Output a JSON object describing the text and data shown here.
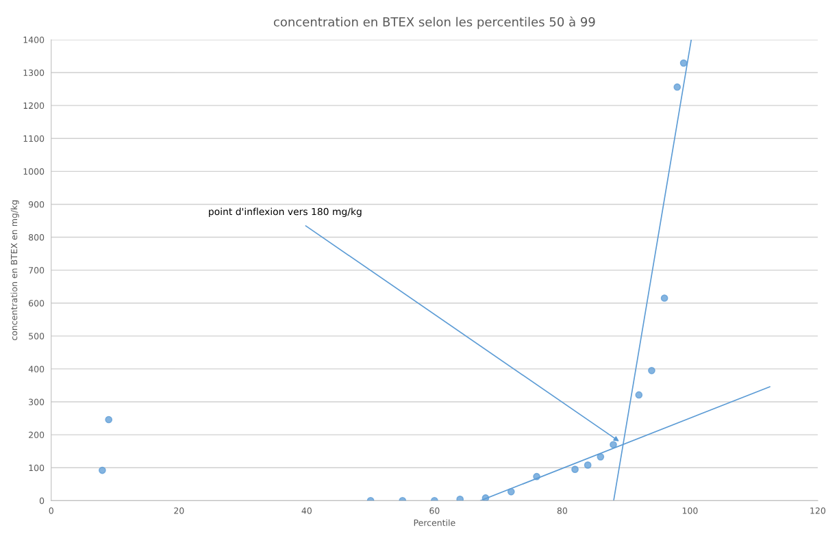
{
  "chart_data": {
    "type": "scatter",
    "title": "concentration en BTEX selon les percentiles 50 à 99",
    "xlabel": "Percentile",
    "ylabel": "concentration en BTEX en mg/kg",
    "series": [
      {
        "color": "#5b9bd5",
        "marker": "circle",
        "x": [
          8,
          9,
          50,
          55,
          60,
          64,
          68,
          72,
          76,
          82,
          84,
          86,
          88,
          92,
          94,
          96,
          98,
          99
        ],
        "values": [
          92,
          246,
          0,
          0,
          0,
          4,
          8,
          27,
          73,
          95,
          108,
          133,
          170,
          321,
          395,
          615,
          1256,
          1329
        ]
      },
      {
        "type": "line",
        "color": "#5b9bd5",
        "line_style": "solid",
        "x": [
          67.2,
          112.5
        ],
        "values": [
          0,
          346
        ]
      },
      {
        "type": "line",
        "color": "#5b9bd5",
        "line_style": "solid",
        "x": [
          88.05,
          100.2
        ],
        "values": [
          0,
          1400
        ]
      }
    ],
    "annotations": [
      {
        "text": "point d'inflexion vers 180 mg/kg",
        "x": 88.9,
        "y": 180
      }
    ],
    "xlim": [
      0,
      120
    ],
    "xticks": [
      0,
      20,
      40,
      60,
      80,
      100,
      120
    ],
    "ylim": [
      0,
      1400
    ],
    "yticks": [
      0,
      100,
      200,
      300,
      400,
      500,
      600,
      700,
      800,
      900,
      1000,
      1100,
      1200,
      1300,
      1400
    ],
    "grid": "y",
    "legend": false
  }
}
